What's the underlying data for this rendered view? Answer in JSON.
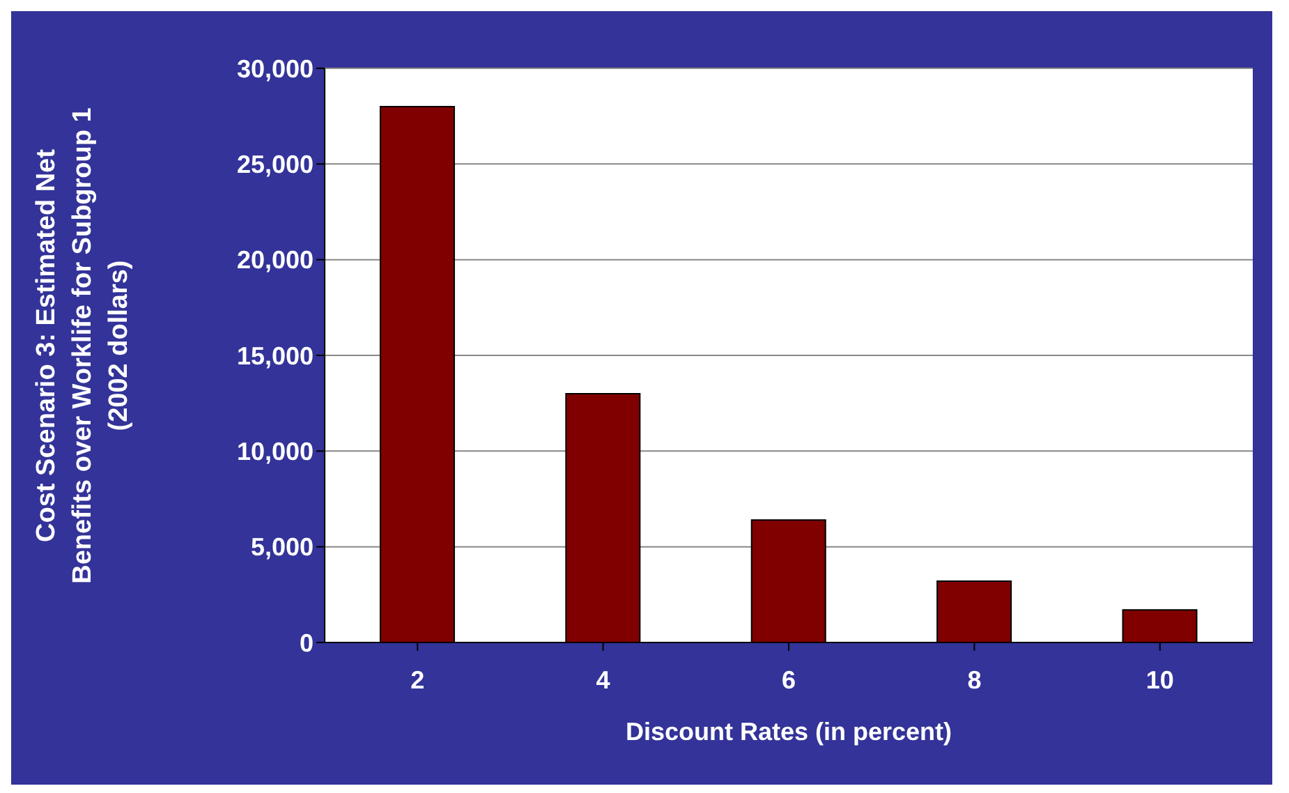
{
  "chart_data": {
    "type": "bar",
    "xlabel": "Discount Rates (in percent)",
    "ylabel": "Cost Scenario 3: Estimated Net Benefits over Worklife for Subgroup 1 (2002 dollars)",
    "categories": [
      "2",
      "4",
      "6",
      "8",
      "10"
    ],
    "values": [
      28000,
      13000,
      6400,
      3200,
      1700
    ],
    "color": "#800000",
    "ylim": [
      0,
      30000
    ],
    "yticks": [
      0,
      {
        "value": 5000,
        "label": "5,000"
      },
      {
        "value": 10000,
        "label": "10,000"
      },
      {
        "value": 15000,
        "label": "15,000"
      },
      {
        "value": 20000,
        "label": "20,000"
      },
      {
        "value": 25000,
        "label": "25,000"
      },
      {
        "value": 30000,
        "label": "30,000"
      }
    ],
    "grid": "y"
  }
}
